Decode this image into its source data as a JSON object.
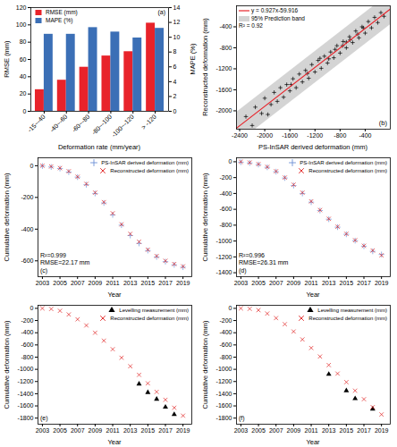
{
  "chart_data": [
    {
      "type": "bar",
      "x_label": "Deformation rate (mm/year)",
      "y_label": "RMSE (mm)",
      "y2_label": "MAPE (%)",
      "categories": [
        "-15~-40",
        "-40~-60",
        "-60~-80",
        "-80~-100",
        "-100~-120",
        "> -120"
      ],
      "ylim": [
        0,
        120
      ],
      "yticks": [
        0,
        20,
        40,
        60,
        80,
        100,
        120
      ],
      "y2lim": [
        0,
        14
      ],
      "y2ticks": [
        0,
        2,
        4,
        6,
        8,
        10,
        12,
        14
      ],
      "legend": "top-left",
      "series": [
        {
          "name": "RMSE (mm)",
          "color": "#e8232a",
          "values": [
            25,
            36,
            51,
            64,
            69,
            102
          ]
        },
        {
          "name": "MAPE (%)",
          "color": "#3b6fb6",
          "axis": "y2",
          "values": [
            10.4,
            10.4,
            11.3,
            10.7,
            9.9,
            11.2
          ]
        }
      ],
      "annotations": [
        "(a)"
      ]
    },
    {
      "type": "scatter",
      "x_label": "PS-InSAR derived deformation (mm)",
      "y_label": "Reconstructed deformation (mm)",
      "xlim": [
        -2450,
        0
      ],
      "xticks": [
        -2400,
        -2000,
        -1600,
        -1200,
        -800,
        -400
      ],
      "ylim": [
        -2350,
        0
      ],
      "yticks": [
        -2000,
        -1600,
        -1200,
        -800,
        -400
      ],
      "legend": "top-left",
      "color": "#000000",
      "marker": "plus",
      "x": [
        -2300,
        -2200,
        -2150,
        -2050,
        -2000,
        -1950,
        -1900,
        -1850,
        -1800,
        -1750,
        -1700,
        -1650,
        -1600,
        -1550,
        -1500,
        -1450,
        -1400,
        -1350,
        -1300,
        -1250,
        -1200,
        -1150,
        -1100,
        -1050,
        -1000,
        -950,
        -900,
        -850,
        -800,
        -750,
        -700,
        -650,
        -600,
        -550,
        -500,
        -450,
        -400,
        -350,
        -300,
        -250,
        -200,
        -150,
        -100,
        -1120,
        -980,
        -760,
        -640,
        -520,
        -880,
        -1320,
        -1580,
        -430,
        -700
      ],
      "values": [
        -2110,
        -2280,
        -1930,
        -2050,
        -1760,
        -2070,
        -1880,
        -1650,
        -1820,
        -1560,
        -1740,
        -1500,
        -1620,
        -1390,
        -1560,
        -1300,
        -1450,
        -1230,
        -1380,
        -1120,
        -1260,
        -1040,
        -1190,
        -960,
        -1090,
        -880,
        -990,
        -760,
        -900,
        -680,
        -800,
        -590,
        -700,
        -480,
        -610,
        -400,
        -520,
        -300,
        -420,
        -220,
        -320,
        -130,
        -200,
        -1000,
        -1010,
        -760,
        -650,
        -540,
        -830,
        -1290,
        -1500,
        -420,
        -690
      ],
      "fit": {
        "name": "y = 0.927x-59.916",
        "slope": 0.927,
        "intercept": -59.916,
        "color": "#e8232a"
      },
      "prediction_band": {
        "name": "95% Prediction band",
        "color": "#d4d4d4",
        "x": [
          -2450,
          0
        ],
        "lower": [
          -2631,
          -360
        ],
        "upper": [
          -2031,
          240
        ]
      },
      "annotations": [
        "(b)",
        "R² = 0.92"
      ]
    },
    {
      "type": "scatter",
      "x_label": "Year",
      "y_label": "Cumulative deformation (mm)",
      "xlim": [
        2002.5,
        2020
      ],
      "xticks": [
        2003,
        2005,
        2007,
        2009,
        2011,
        2013,
        2015,
        2017,
        2019
      ],
      "ylim": [
        -700,
        50
      ],
      "yticks": [
        -600,
        -400,
        -200,
        0
      ],
      "legend": "top-right",
      "series": [
        {
          "name": "PS-InSAR derived deformation (mm)",
          "color": "#6b8fd6",
          "marker": "plus",
          "x": [
            2003,
            2004,
            2005,
            2006,
            2007,
            2008,
            2009,
            2010,
            2011,
            2012,
            2013,
            2014,
            2015,
            2016,
            2017,
            2018,
            2019
          ],
          "values": [
            -2,
            -8,
            -18,
            -40,
            -72,
            -120,
            -175,
            -235,
            -310,
            -375,
            -440,
            -490,
            -535,
            -575,
            -605,
            -625,
            -640
          ]
        },
        {
          "name": "Reconstructed deformation (mm)",
          "color": "#e02020",
          "marker": "times",
          "x": [
            2003,
            2004,
            2005,
            2006,
            2007,
            2008,
            2009,
            2010,
            2011,
            2012,
            2013,
            2014,
            2015,
            2016,
            2017,
            2018,
            2019
          ],
          "values": [
            0,
            -5,
            -15,
            -35,
            -70,
            -115,
            -170,
            -230,
            -300,
            -370,
            -430,
            -480,
            -530,
            -570,
            -600,
            -620,
            -635
          ]
        }
      ],
      "annotations": [
        "(c)",
        "R²=0.999",
        "RMSE=22.17 mm"
      ]
    },
    {
      "type": "scatter",
      "x_label": "Year",
      "y_label": "Cumulative deformation (mm)",
      "xlim": [
        2002.5,
        2020
      ],
      "xticks": [
        2003,
        2005,
        2007,
        2009,
        2011,
        2013,
        2015,
        2017,
        2019
      ],
      "ylim": [
        -1450,
        50
      ],
      "yticks": [
        -1400,
        -1200,
        -1000,
        -800,
        -600,
        -400,
        -200,
        0
      ],
      "legend": "top-right",
      "series": [
        {
          "name": "PS-InSAR derived deformation (mm)",
          "color": "#6b8fd6",
          "marker": "plus",
          "x": [
            2003,
            2004,
            2005,
            2006,
            2007,
            2008,
            2009,
            2010,
            2011,
            2012,
            2013,
            2014,
            2015,
            2016,
            2017,
            2018,
            2019
          ],
          "values": [
            -5,
            -15,
            -35,
            -70,
            -125,
            -205,
            -300,
            -400,
            -510,
            -615,
            -725,
            -825,
            -915,
            -995,
            -1065,
            -1130,
            -1170
          ]
        },
        {
          "name": "Reconstructed deformation (mm)",
          "color": "#e02020",
          "marker": "times",
          "x": [
            2003,
            2004,
            2005,
            2006,
            2007,
            2008,
            2009,
            2010,
            2011,
            2012,
            2013,
            2014,
            2015,
            2016,
            2017,
            2018,
            2019
          ],
          "values": [
            0,
            -10,
            -30,
            -65,
            -120,
            -200,
            -290,
            -390,
            -500,
            -610,
            -720,
            -820,
            -910,
            -990,
            -1060,
            -1120,
            -1180
          ]
        }
      ],
      "annotations": [
        "(d)",
        "R²=0.996",
        "RMSE=26.31 mm"
      ]
    },
    {
      "type": "scatter",
      "x_label": "Year",
      "y_label": "Cumulative deformation (mm)",
      "xlim": [
        2002.5,
        2020
      ],
      "xticks": [
        2003,
        2005,
        2007,
        2009,
        2011,
        2013,
        2015,
        2017,
        2019
      ],
      "ylim": [
        -1900,
        50
      ],
      "yticks": [
        -1800,
        -1600,
        -1400,
        -1200,
        -1000,
        -800,
        -600,
        -400,
        -200,
        0
      ],
      "legend": "top-right",
      "series": [
        {
          "name": "Levelling measurement (mm)",
          "color": "#000000",
          "marker": "triangle",
          "x": [
            2014,
            2015,
            2016,
            2017,
            2018
          ],
          "values": [
            -1240,
            -1380,
            -1490,
            -1620,
            -1740
          ]
        },
        {
          "name": "Reconstructed deformation (mm)",
          "color": "#e02020",
          "marker": "times",
          "x": [
            2003,
            2004,
            2005,
            2006,
            2007,
            2008,
            2009,
            2010,
            2011,
            2012,
            2013,
            2014,
            2015,
            2016,
            2017,
            2018,
            2019
          ],
          "values": [
            0,
            -10,
            -40,
            -100,
            -180,
            -280,
            -400,
            -530,
            -670,
            -810,
            -950,
            -1090,
            -1230,
            -1370,
            -1500,
            -1630,
            -1760
          ]
        }
      ],
      "annotations": [
        "(e)"
      ]
    },
    {
      "type": "scatter",
      "x_label": "Year",
      "y_label": "Cumulative deformation (mm)",
      "xlim": [
        2002.5,
        2020
      ],
      "xticks": [
        2003,
        2005,
        2007,
        2009,
        2011,
        2013,
        2015,
        2017,
        2019
      ],
      "ylim": [
        -1900,
        50
      ],
      "yticks": [
        -1800,
        -1600,
        -1400,
        -1200,
        -1000,
        -800,
        -600,
        -400,
        -200,
        0
      ],
      "legend": "top-right",
      "series": [
        {
          "name": "Levelling measurement (mm)",
          "color": "#000000",
          "marker": "triangle",
          "x": [
            2013,
            2015,
            2016,
            2018
          ],
          "values": [
            -1080,
            -1350,
            -1480,
            -1650
          ]
        },
        {
          "name": "Reconstructed deformation (mm)",
          "color": "#e02020",
          "marker": "times",
          "x": [
            2003,
            2004,
            2005,
            2006,
            2007,
            2008,
            2009,
            2010,
            2011,
            2012,
            2013,
            2014,
            2015,
            2016,
            2017,
            2018,
            2019
          ],
          "values": [
            0,
            -8,
            -30,
            -85,
            -160,
            -260,
            -380,
            -510,
            -650,
            -790,
            -930,
            -1070,
            -1210,
            -1350,
            -1490,
            -1620,
            -1740
          ]
        }
      ],
      "annotations": [
        "(f)"
      ]
    }
  ]
}
